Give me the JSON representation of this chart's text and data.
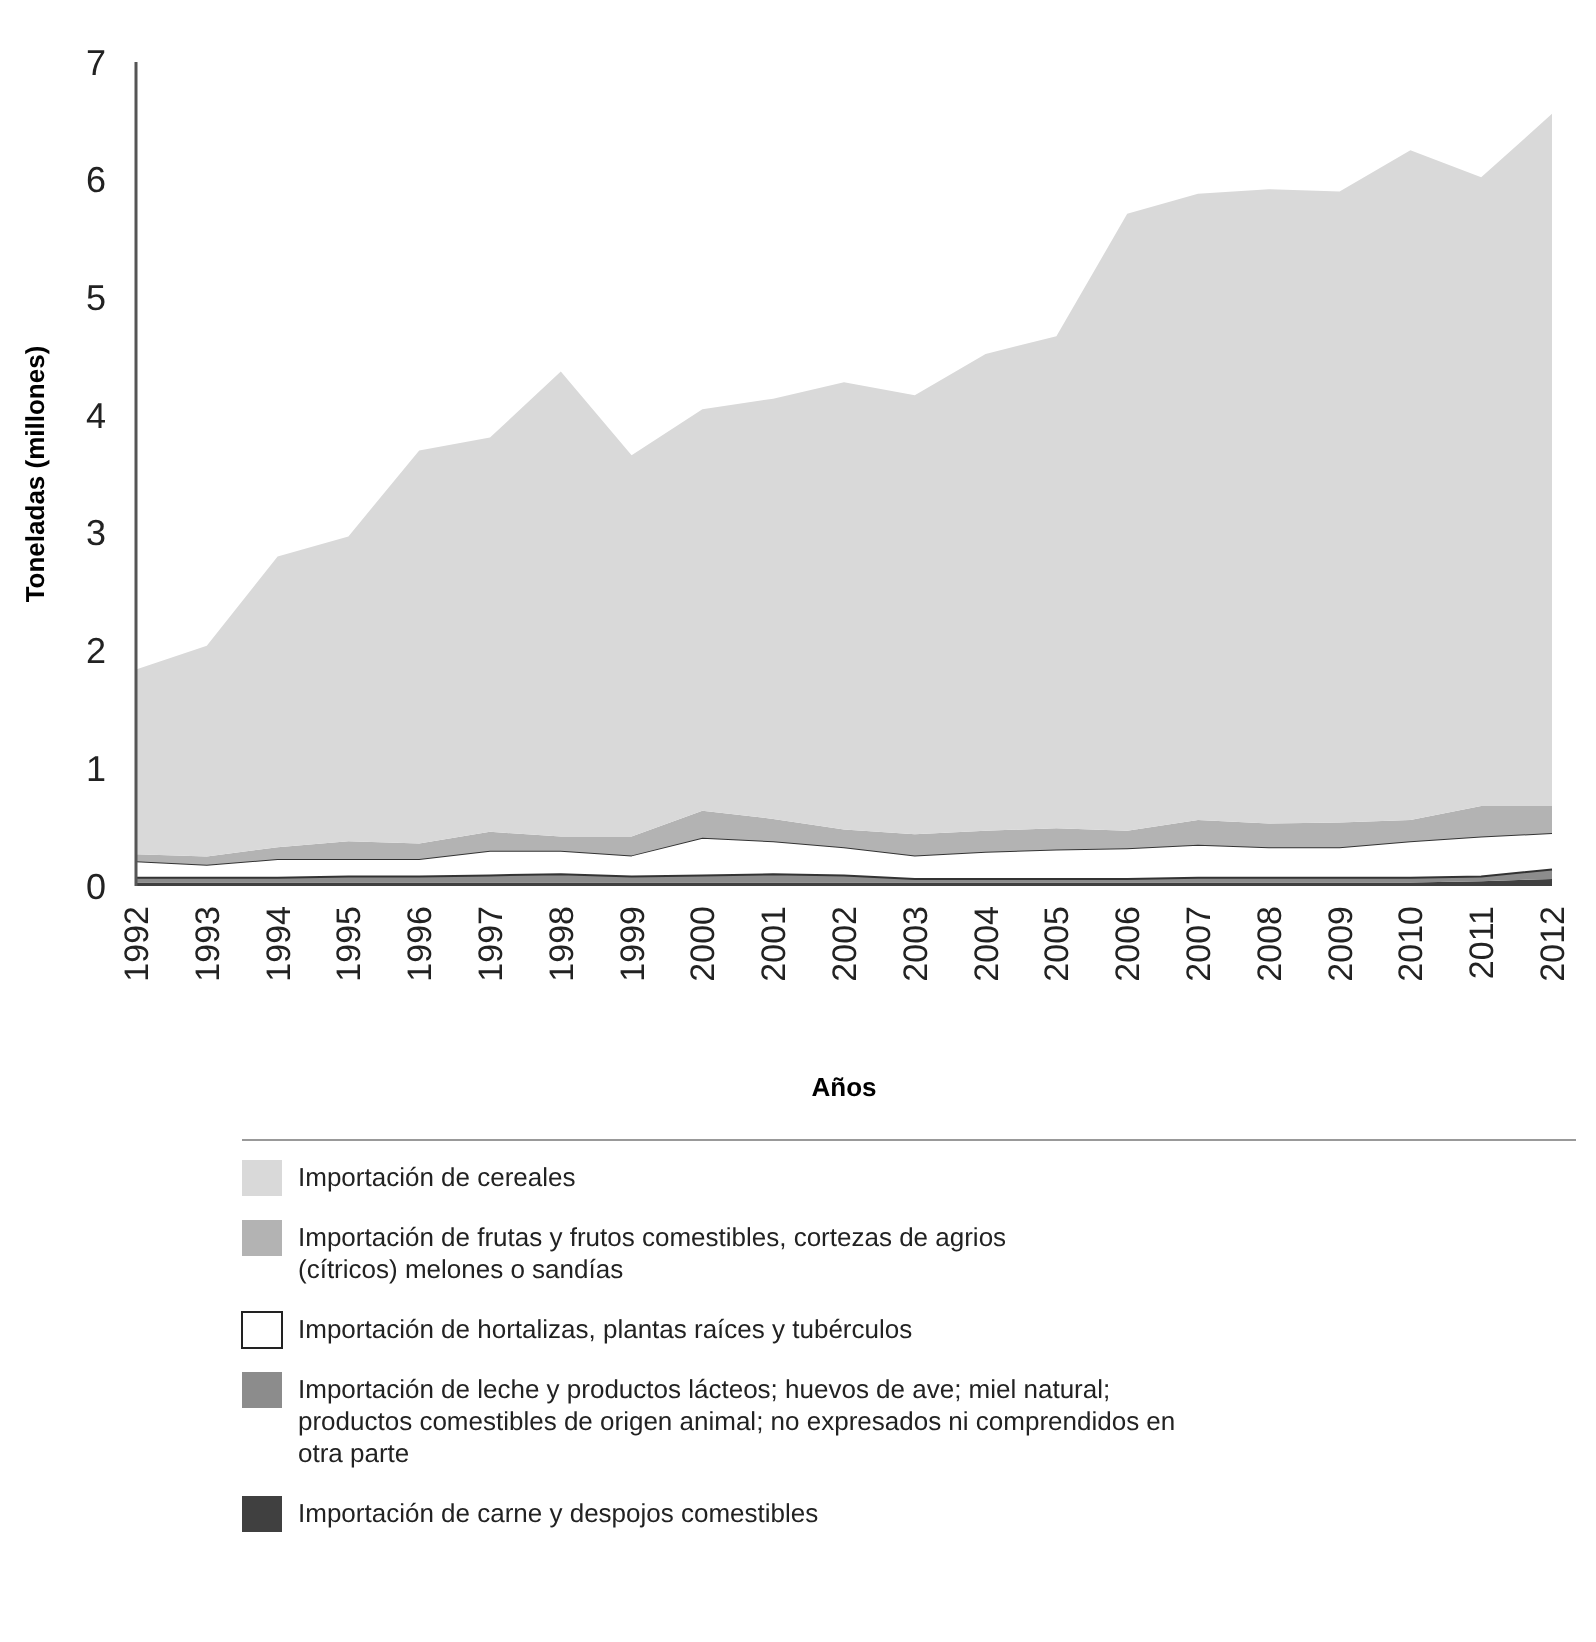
{
  "chart_data": {
    "type": "area",
    "stacked": true,
    "xlabel": "Años",
    "ylabel": "Toneladas (millones)",
    "categories": [
      "1992",
      "1993",
      "1994",
      "1995",
      "1996",
      "1997",
      "1998",
      "1999",
      "2000",
      "2001",
      "2002",
      "2003",
      "2004",
      "2005",
      "2006",
      "2007",
      "2008",
      "2009",
      "2010",
      "2011",
      "2012"
    ],
    "ylim": [
      0,
      7
    ],
    "yticks": [
      0,
      1,
      2,
      3,
      4,
      5,
      6,
      7
    ],
    "legend": "bottom",
    "series": [
      {
        "name": "Importación de carne y despojos comestibles",
        "color": "#404040",
        "values": [
          0.03,
          0.03,
          0.03,
          0.03,
          0.03,
          0.03,
          0.03,
          0.03,
          0.03,
          0.03,
          0.03,
          0.03,
          0.03,
          0.03,
          0.03,
          0.03,
          0.03,
          0.03,
          0.03,
          0.04,
          0.06
        ]
      },
      {
        "name": "Importación de leche y productos lácteos; huevos de ave; miel natural; productos comestibles de origen animal; no expresados ni comprendidos en otra parte",
        "color": "#8c8c8c",
        "values": [
          0.04,
          0.04,
          0.04,
          0.05,
          0.05,
          0.06,
          0.07,
          0.05,
          0.06,
          0.07,
          0.06,
          0.03,
          0.03,
          0.03,
          0.03,
          0.04,
          0.04,
          0.04,
          0.04,
          0.04,
          0.08
        ]
      },
      {
        "name": "Importación de hortalizas, plantas raíces y tubérculos",
        "color": "#ffffff",
        "values": [
          0.14,
          0.11,
          0.16,
          0.15,
          0.15,
          0.21,
          0.2,
          0.18,
          0.32,
          0.28,
          0.24,
          0.2,
          0.23,
          0.25,
          0.26,
          0.28,
          0.26,
          0.26,
          0.31,
          0.34,
          0.31
        ]
      },
      {
        "name": "Importación de frutas y frutos comestibles, cortezas de agrios (cítricos) melones o sandías",
        "color": "#b3b3b3",
        "values": [
          0.06,
          0.07,
          0.1,
          0.15,
          0.13,
          0.16,
          0.12,
          0.16,
          0.23,
          0.19,
          0.15,
          0.18,
          0.18,
          0.18,
          0.15,
          0.21,
          0.2,
          0.21,
          0.18,
          0.26,
          0.23
        ]
      },
      {
        "name": "Importación de cereales",
        "color": "#d9d9d9",
        "values": [
          1.57,
          1.79,
          2.47,
          2.59,
          3.34,
          3.35,
          3.95,
          3.24,
          3.41,
          3.57,
          3.8,
          3.73,
          4.05,
          4.18,
          5.24,
          5.32,
          5.39,
          5.36,
          5.69,
          5.34,
          5.88
        ]
      }
    ]
  }
}
